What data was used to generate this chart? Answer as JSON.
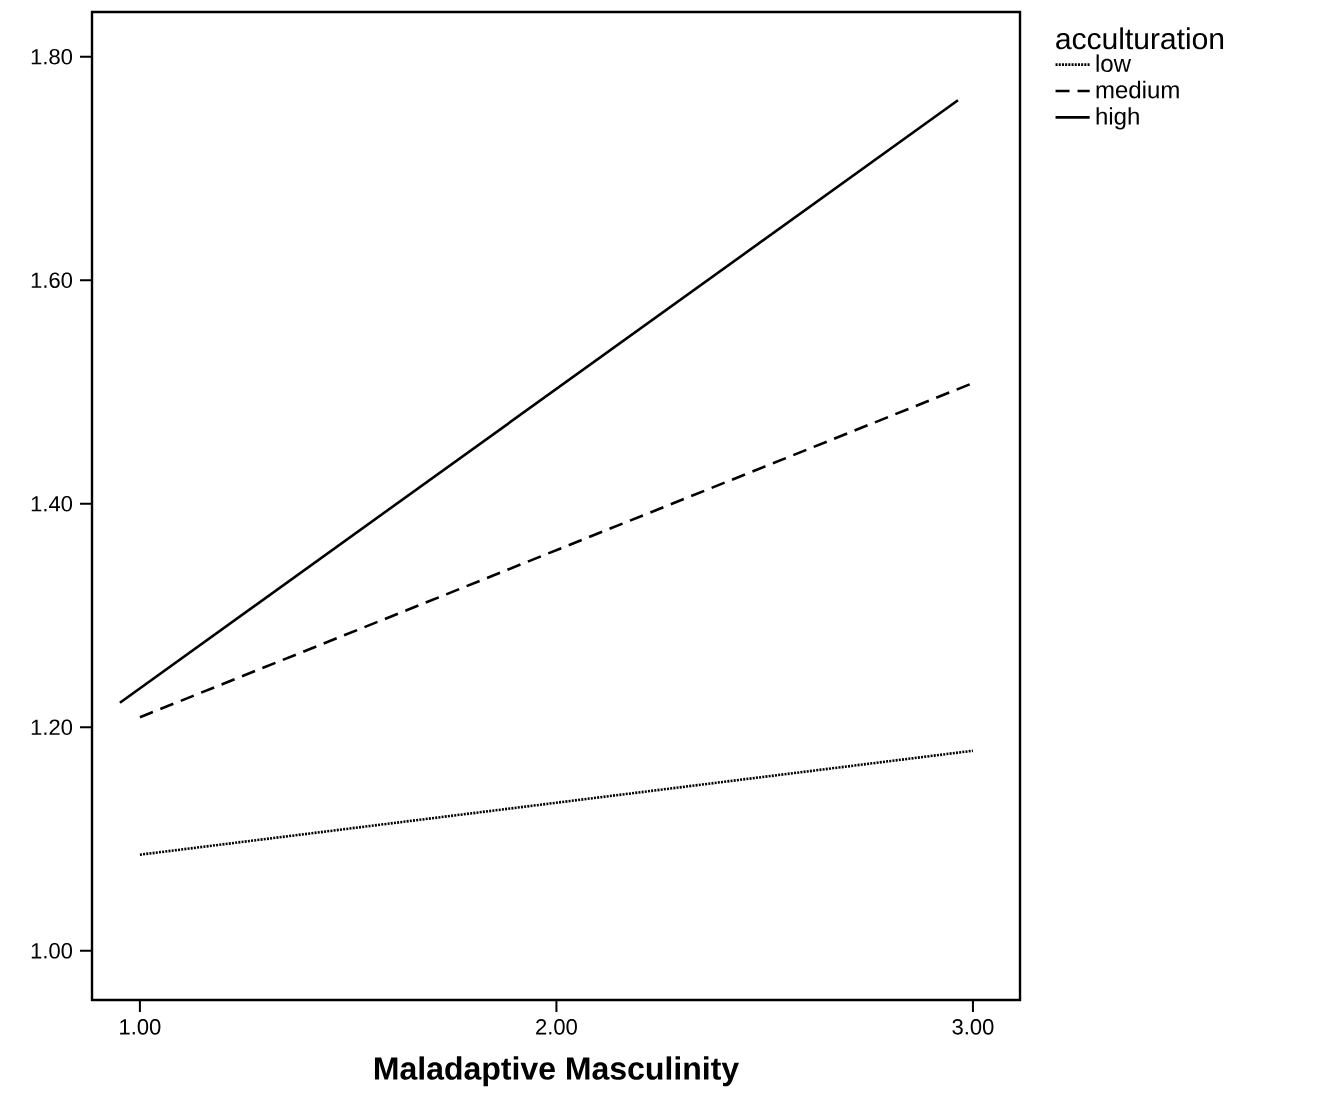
{
  "chart_data": {
    "type": "line",
    "xlabel": "Maladaptive Masculinity",
    "legend_title": "acculturation",
    "legend": "top right",
    "xlim": [
      0.885,
      3.113
    ],
    "ylim": [
      0.956,
      1.84
    ],
    "xticks": [
      {
        "value": 1,
        "label": "1.00"
      },
      {
        "value": 2,
        "label": "2.00"
      },
      {
        "value": 3,
        "label": "3.00"
      }
    ],
    "yticks": [
      {
        "value": 1.0,
        "label": "1.00"
      },
      {
        "value": 1.2,
        "label": "1.20"
      },
      {
        "value": 1.4,
        "label": "1.40"
      },
      {
        "value": 1.6,
        "label": "1.60"
      },
      {
        "value": 1.8,
        "label": "1.80"
      }
    ],
    "grid": false,
    "marker": "none",
    "series": [
      {
        "name": "low",
        "color": "#000000",
        "line_style": "dotted",
        "x": [
          1.0,
          3.0
        ],
        "values": [
          1.086,
          1.179
        ]
      },
      {
        "name": "medium",
        "color": "#000000",
        "line_style": "dashed",
        "x": [
          1.0,
          3.0
        ],
        "values": [
          1.209,
          1.508
        ]
      },
      {
        "name": "high",
        "color": "#000000",
        "line_style": "solid",
        "x": [
          0.952,
          2.964
        ],
        "values": [
          1.222,
          1.761
        ]
      }
    ]
  }
}
